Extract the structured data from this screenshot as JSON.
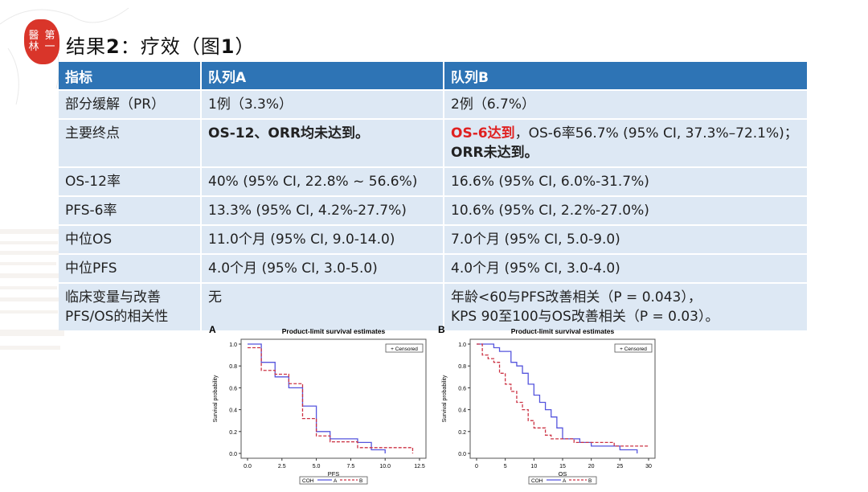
{
  "slide": {
    "title_prefix": "结果",
    "title_num": "2",
    "title_suffix": "：疗效（图",
    "title_fig": "1",
    "title_end": "）",
    "seal_chars": [
      "第",
      "醫",
      "一",
      "林"
    ]
  },
  "table": {
    "headers": [
      "指标",
      "队列A",
      "队列B"
    ],
    "rows": [
      {
        "label": "部分缓解（PR）",
        "a": "1例（3.3%）",
        "b": "2例（6.7%）"
      },
      {
        "label": "主要终点",
        "a": "OS-12、ORR均未达到。",
        "b_red": "OS-6达到",
        "b_rest": "，OS-6率56.7% (95% CI, 37.3%–72.1%)；",
        "b_line2": "ORR未达到。"
      },
      {
        "label": "OS-12率",
        "a": "40% (95% CI, 22.8% ~ 56.6%)",
        "b": "16.6% (95% CI, 6.0%-31.7%)"
      },
      {
        "label": "PFS-6率",
        "a": "13.3% (95% CI, 4.2%-27.7%)",
        "b": "10.6% (95% CI, 2.2%-27.0%)"
      },
      {
        "label": "中位OS",
        "a": "11.0个月 (95% CI, 9.0-14.0)",
        "b": "7.0个月 (95% CI, 5.0-9.0)"
      },
      {
        "label": "中位PFS",
        "a": "4.0个月 (95% CI, 3.0-5.0)",
        "b": "4.0个月 (95% CI, 3.0-4.0)"
      },
      {
        "label": "临床变量与改善",
        "label2": "PFS/OS的相关性",
        "a": "无",
        "b": "年龄<60与PFS改善相关（P = 0.043），",
        "b_line2": "KPS 90至100与OS改善相关（P = 0.03）。"
      }
    ],
    "colors": {
      "header": "#2e74b5",
      "cell": "#dde8f4",
      "highlight": "#e02020"
    }
  },
  "chart_data": [
    {
      "type": "line",
      "panel": "A",
      "title": "Product-limit survival estimates",
      "xlabel": "PFS",
      "ylabel": "Survival probability",
      "xlim": [
        0,
        12.5
      ],
      "ylim": [
        0,
        1.0
      ],
      "xticks": [
        "0.0",
        "2.5",
        "5.0",
        "7.5",
        "10.0",
        "12.5"
      ],
      "yticks": [
        "0.0",
        "0.2",
        "0.4",
        "0.6",
        "0.8",
        "1.0"
      ],
      "legend_censored": "+ Censored",
      "legend": {
        "label": "COH",
        "entries": [
          "A",
          "B"
        ]
      },
      "series": [
        {
          "name": "A",
          "color": "#5555dd",
          "dash": false,
          "x": [
            0,
            1,
            2,
            3,
            4,
            5,
            6,
            8,
            9,
            10
          ],
          "y": [
            1.0,
            0.833,
            0.7,
            0.6,
            0.433,
            0.2,
            0.133,
            0.1,
            0.033,
            0.0
          ]
        },
        {
          "name": "B",
          "color": "#cc3344",
          "dash": true,
          "x": [
            0,
            1,
            2,
            3,
            4,
            5,
            6,
            8,
            12
          ],
          "y": [
            0.967,
            0.759,
            0.724,
            0.638,
            0.319,
            0.16,
            0.106,
            0.053,
            0.0
          ]
        }
      ]
    },
    {
      "type": "line",
      "panel": "B",
      "title": "Product-limit survival estimates",
      "xlabel": "OS",
      "ylabel": "Survival probability",
      "xlim": [
        0,
        30
      ],
      "ylim": [
        0,
        1.0
      ],
      "xticks": [
        "0",
        "5",
        "10",
        "15",
        "20",
        "25",
        "30"
      ],
      "yticks": [
        "0.0",
        "0.2",
        "0.4",
        "0.6",
        "0.8",
        "1.0"
      ],
      "legend_censored": "+ Censored",
      "legend": {
        "label": "COH",
        "entries": [
          "A",
          "B"
        ]
      },
      "series": [
        {
          "name": "A",
          "color": "#5555dd",
          "dash": false,
          "x": [
            0,
            3,
            4,
            6,
            7,
            8,
            9,
            10,
            11,
            12,
            13,
            14,
            15,
            18,
            20,
            25,
            28
          ],
          "y": [
            1.0,
            0.967,
            0.933,
            0.833,
            0.8,
            0.733,
            0.633,
            0.533,
            0.467,
            0.4,
            0.333,
            0.233,
            0.133,
            0.1,
            0.067,
            0.033,
            0.0
          ]
        },
        {
          "name": "B",
          "color": "#cc3344",
          "dash": true,
          "x": [
            0,
            1,
            2,
            3,
            4,
            5,
            6,
            7,
            8,
            9,
            10,
            12,
            13,
            15,
            17,
            24,
            30
          ],
          "y": [
            1.0,
            0.9,
            0.867,
            0.833,
            0.733,
            0.633,
            0.567,
            0.467,
            0.4,
            0.3,
            0.233,
            0.167,
            0.133,
            0.133,
            0.1,
            0.067,
            0.067
          ]
        }
      ]
    }
  ]
}
